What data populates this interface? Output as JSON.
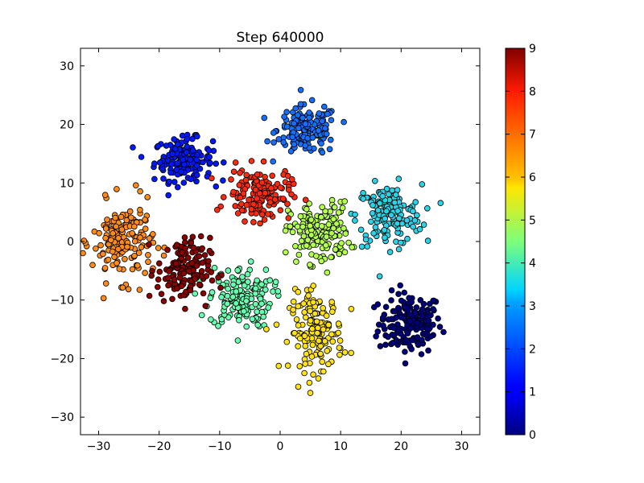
{
  "chart_data": {
    "type": "scatter",
    "title": "Step 640000",
    "xlabel": "",
    "ylabel": "",
    "xlim": [
      -33,
      33
    ],
    "ylim": [
      -33,
      33
    ],
    "xticks": [
      -30,
      -20,
      -10,
      0,
      10,
      20,
      30
    ],
    "yticks": [
      -30,
      -20,
      -10,
      0,
      10,
      20,
      30
    ],
    "xtick_labels": [
      "−30",
      "−20",
      "−10",
      "0",
      "10",
      "20",
      "30"
    ],
    "ytick_labels": [
      "−30",
      "−20",
      "−10",
      "0",
      "10",
      "20",
      "30"
    ],
    "grid": false,
    "colormap": "jet",
    "colorbar": {
      "range": [
        0,
        9
      ],
      "ticks": [
        0,
        1,
        2,
        3,
        4,
        5,
        6,
        7,
        8,
        9
      ],
      "tick_labels": [
        "0",
        "1",
        "2",
        "3",
        "4",
        "5",
        "6",
        "7",
        "8",
        "9"
      ]
    },
    "marker_edge_color": "#000000",
    "clusters": [
      {
        "label": 0,
        "color": "#00007f",
        "center": [
          21.5,
          -14
        ],
        "spread": [
          2.6,
          2.6
        ],
        "count": 170
      },
      {
        "label": 1,
        "color": "#0018ff",
        "center": [
          -16,
          14
        ],
        "spread": [
          2.4,
          1.8
        ],
        "count": 160
      },
      {
        "label": 2,
        "color": "#1670ff",
        "center": [
          4.5,
          19
        ],
        "spread": [
          2.5,
          2.1
        ],
        "count": 160
      },
      {
        "label": 3,
        "color": "#2ad4e8",
        "center": [
          18,
          4.5
        ],
        "spread": [
          2.7,
          2.6
        ],
        "count": 160
      },
      {
        "label": 4,
        "color": "#66ffb0",
        "center": [
          -6.5,
          -9.5
        ],
        "spread": [
          2.6,
          2.6
        ],
        "count": 160
      },
      {
        "label": 5,
        "color": "#b4ff4d",
        "center": [
          6.5,
          1.5
        ],
        "spread": [
          2.5,
          2.6
        ],
        "count": 160
      },
      {
        "label": 6,
        "color": "#ffe214",
        "center": [
          6,
          -15.5
        ],
        "spread": [
          2.2,
          3.3
        ],
        "count": 160
      },
      {
        "label": 7,
        "color": "#ff8c1a",
        "center": [
          -26,
          0
        ],
        "spread": [
          2.5,
          3.3
        ],
        "count": 170
      },
      {
        "label": 8,
        "color": "#ff2a0e",
        "center": [
          -3.5,
          8
        ],
        "spread": [
          2.6,
          2.2
        ],
        "count": 150
      },
      {
        "label": 9,
        "color": "#8b0000",
        "center": [
          -16,
          -5
        ],
        "spread": [
          2.2,
          2.8
        ],
        "count": 150
      }
    ]
  }
}
